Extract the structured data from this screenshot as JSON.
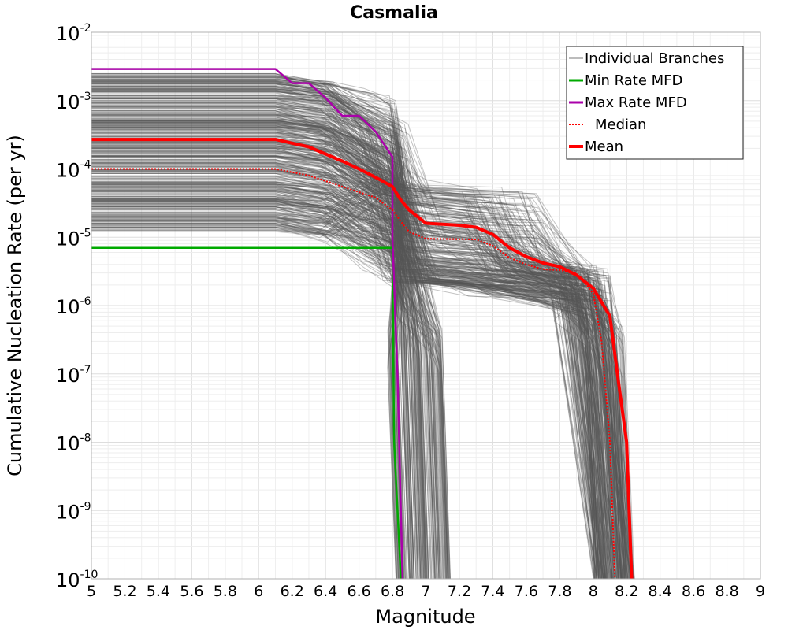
{
  "chart_data": {
    "type": "line",
    "title": "Casmalia",
    "xlabel": "Magnitude",
    "ylabel": "Cumulative Nucleation Rate (per yr)",
    "xlim": [
      5,
      9
    ],
    "ylim": [
      1e-10,
      0.01
    ],
    "yscale": "log",
    "grid": true,
    "legend_position": "top-right",
    "x_ticks": [
      "5",
      "5.2",
      "5.4",
      "5.6",
      "5.8",
      "6",
      "6.2",
      "6.4",
      "6.6",
      "6.8",
      "7",
      "7.2",
      "7.4",
      "7.6",
      "7.8",
      "8",
      "8.2",
      "8.4",
      "8.6",
      "8.8",
      "9"
    ],
    "y_ticks": [
      {
        "value": 0.01,
        "base": "10",
        "exp": "-2"
      },
      {
        "value": 0.001,
        "base": "10",
        "exp": "-3"
      },
      {
        "value": 0.0001,
        "base": "10",
        "exp": "-4"
      },
      {
        "value": 1e-05,
        "base": "10",
        "exp": "-5"
      },
      {
        "value": 1e-06,
        "base": "10",
        "exp": "-6"
      },
      {
        "value": 1e-07,
        "base": "10",
        "exp": "-7"
      },
      {
        "value": 1e-08,
        "base": "10",
        "exp": "-8"
      },
      {
        "value": 1e-09,
        "base": "10",
        "exp": "-9"
      },
      {
        "value": 1e-10,
        "base": "10",
        "exp": "-10"
      }
    ],
    "legend": [
      {
        "key": "branches",
        "label": "Individual Branches",
        "color": "#7a7a7a",
        "style": "thin"
      },
      {
        "key": "min",
        "label": "Min Rate MFD",
        "color": "#00aa00",
        "style": "solid"
      },
      {
        "key": "max",
        "label": "Max Rate MFD",
        "color": "#aa00aa",
        "style": "solid"
      },
      {
        "key": "median",
        "label": "Median",
        "color": "#ff0000",
        "style": "dotted"
      },
      {
        "key": "mean",
        "label": "Mean",
        "color": "#ff0000",
        "style": "thick"
      }
    ],
    "series": [
      {
        "key": "min",
        "name": "Min Rate MFD",
        "color": "#00aa00",
        "x": [
          5.0,
          6.1,
          6.8,
          6.8,
          6.81,
          6.85
        ],
        "y": [
          7e-06,
          7e-06,
          7e-06,
          5e-06,
          1e-08,
          1e-10
        ]
      },
      {
        "key": "max",
        "name": "Max Rate MFD",
        "color": "#aa00aa",
        "x": [
          5.0,
          6.1,
          6.2,
          6.3,
          6.4,
          6.5,
          6.6,
          6.7,
          6.8,
          6.8,
          6.83,
          6.86
        ],
        "y": [
          0.0029,
          0.0029,
          0.0018,
          0.0018,
          0.0011,
          0.0006,
          0.0006,
          0.00035,
          0.00015,
          1e-05,
          1e-07,
          1e-10
        ]
      },
      {
        "key": "median",
        "name": "Median",
        "color": "#ff0000",
        "x": [
          5.0,
          6.1,
          6.3,
          6.5,
          6.7,
          6.8,
          6.85,
          6.9,
          7.0,
          7.3,
          7.4,
          7.5,
          7.6,
          7.7,
          7.8,
          7.9,
          8.0,
          8.05,
          8.1,
          8.13
        ],
        "y": [
          0.0001,
          0.0001,
          8e-05,
          5.5e-05,
          3.8e-05,
          2.5e-05,
          1.7e-05,
          1.2e-05,
          9.5e-06,
          9.3e-06,
          7.5e-06,
          5e-06,
          4e-06,
          3.4e-06,
          3.3e-06,
          3e-06,
          1.5e-06,
          3e-07,
          1e-08,
          1e-10
        ]
      },
      {
        "key": "mean",
        "name": "Mean",
        "color": "#ff0000",
        "x": [
          5.0,
          6.1,
          6.3,
          6.5,
          6.6,
          6.7,
          6.8,
          6.85,
          6.9,
          7.0,
          7.2,
          7.3,
          7.4,
          7.5,
          7.6,
          7.7,
          7.8,
          7.9,
          8.0,
          8.1,
          8.15,
          8.2,
          8.23
        ],
        "y": [
          0.00027,
          0.00027,
          0.00021,
          0.00013,
          0.0001,
          7.5e-05,
          5.5e-05,
          3.5e-05,
          2.5e-05,
          1.6e-05,
          1.5e-05,
          1.4e-05,
          1.1e-05,
          7e-06,
          5.2e-06,
          4.2e-06,
          3.7e-06,
          2.8e-06,
          1.8e-06,
          7e-07,
          8e-08,
          1e-08,
          1e-10
        ]
      }
    ],
    "branches_band": {
      "description_visible": false,
      "plateau_range": [
        1.2e-05,
        0.0025
      ],
      "lower_plateau_range": [
        2.2e-06,
        7e-05
      ],
      "tail_high_cutoff": [
        8.0,
        8.25
      ],
      "tail_low_cutoff": [
        6.8,
        7.15
      ]
    }
  }
}
